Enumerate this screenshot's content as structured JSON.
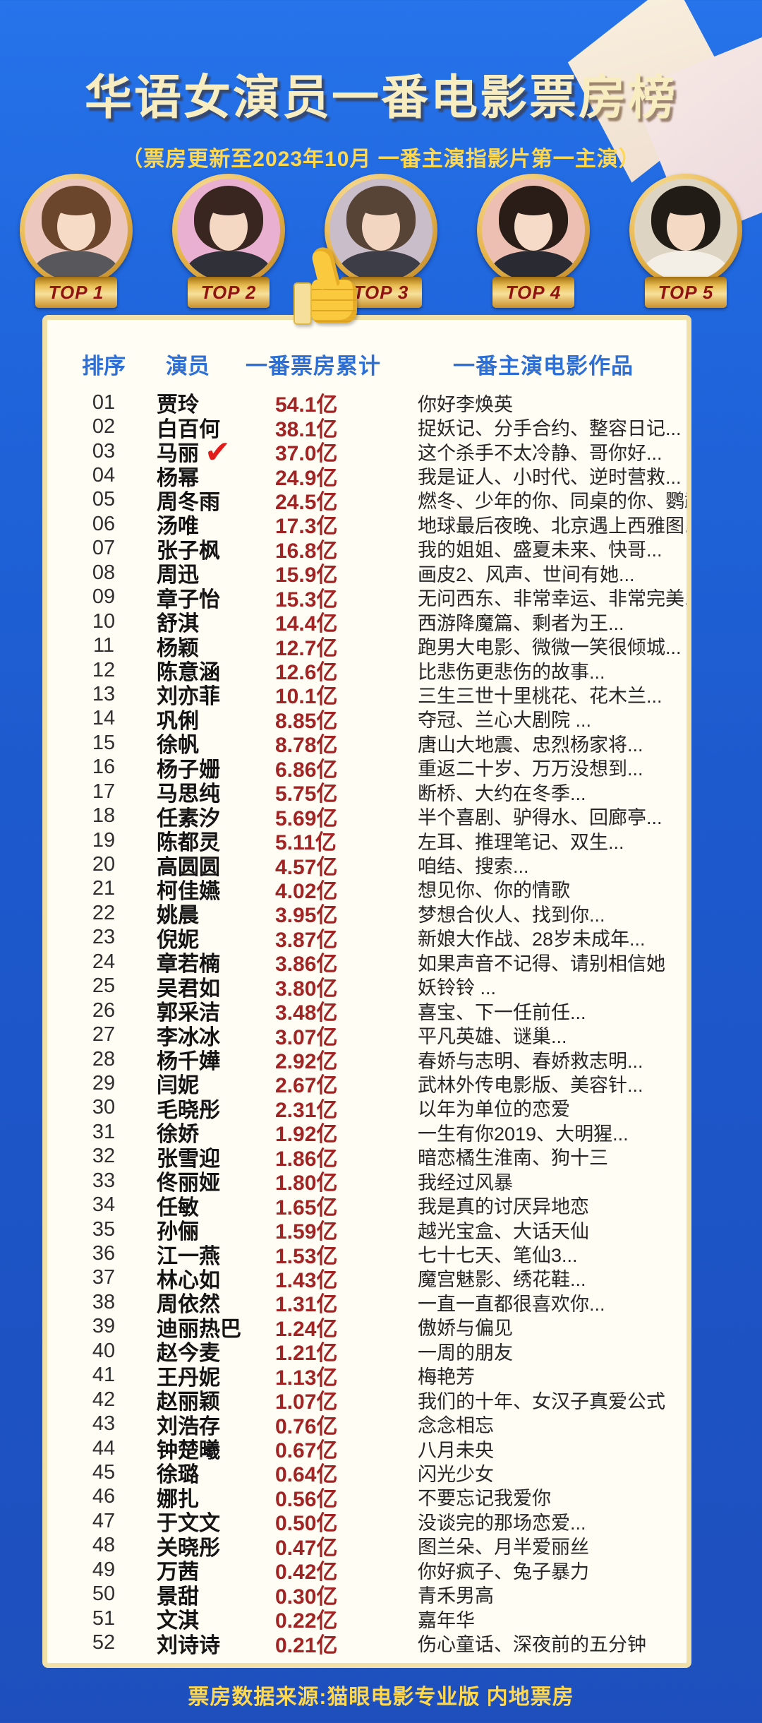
{
  "title": "华语女演员一番电影票房榜",
  "subtitle": "（票房更新至2023年10月  一番主演指影片第一主演）",
  "footer": "票房数据来源:猫眼电影专业版  内地票房",
  "colors": {
    "background_top": "#2673ea",
    "background_bottom": "#1e4fbd",
    "title_text": "#f8edc0",
    "accent_gold": "#ffd84d",
    "header_blue": "#2e6fd6",
    "gross_red": "#a12424",
    "check_red": "#e21b1b",
    "badge_text_red": "#8f1410"
  },
  "avatars": [
    {
      "badge": "TOP 1",
      "colors": {
        "bg": "#ecc7bd",
        "hair": "#6b452c",
        "skin": "#f6dcc6",
        "shirt": "#58585c"
      }
    },
    {
      "badge": "TOP 2",
      "colors": {
        "bg": "#eab0d2",
        "hair": "#3a2620",
        "skin": "#f4d8c3",
        "shirt": "#303038"
      }
    },
    {
      "badge": "TOP 3",
      "colors": {
        "bg": "#c9bdc9",
        "hair": "#584436",
        "skin": "#f2d6c1",
        "shirt": "#3d3d47"
      }
    },
    {
      "badge": "TOP 4",
      "colors": {
        "bg": "#edbfb2",
        "hair": "#2a1d17",
        "skin": "#f6dcc8",
        "shirt": "#2a2a32"
      }
    },
    {
      "badge": "TOP 5",
      "colors": {
        "bg": "#ddd4c4",
        "hair": "#221c16",
        "skin": "#f4dac5",
        "shirt": "#f3efe7"
      }
    }
  ],
  "decorations": {
    "thumbs_up_icon": "thumbs-up",
    "gift_box": "light paper box top-right"
  },
  "table": {
    "headers": [
      "排序",
      "演员",
      "一番票房累计",
      "一番主演电影作品"
    ],
    "rows": [
      {
        "rank": "01",
        "name": "贾玲",
        "gross": "54.1亿",
        "movies": "你好李焕英",
        "checked": false
      },
      {
        "rank": "02",
        "name": "白百何",
        "gross": "38.1亿",
        "movies": "捉妖记、分手合约、整容日记...",
        "checked": false
      },
      {
        "rank": "03",
        "name": "马丽",
        "gross": "37.0亿",
        "movies": "这个杀手不太冷静、哥你好...",
        "checked": true
      },
      {
        "rank": "04",
        "name": "杨幂",
        "gross": "24.9亿",
        "movies": "我是证人、小时代、逆时营救...",
        "checked": false
      },
      {
        "rank": "05",
        "name": "周冬雨",
        "gross": "24.5亿",
        "movies": "燃冬、少年的你、同桌的你、鹦鹉杀...",
        "checked": false
      },
      {
        "rank": "06",
        "name": "汤唯",
        "gross": "17.3亿",
        "movies": "地球最后夜晚、北京遇上西雅图...",
        "checked": false
      },
      {
        "rank": "07",
        "name": "张子枫",
        "gross": "16.8亿",
        "movies": "我的姐姐、盛夏未来、快哥...",
        "checked": false
      },
      {
        "rank": "08",
        "name": "周迅",
        "gross": "15.9亿",
        "movies": "画皮2、风声、世间有她...",
        "checked": false
      },
      {
        "rank": "09",
        "name": "章子怡",
        "gross": "15.3亿",
        "movies": "无问西东、非常幸运、非常完美...",
        "checked": false
      },
      {
        "rank": "10",
        "name": "舒淇",
        "gross": "14.4亿",
        "movies": "西游降魔篇、剩者为王...",
        "checked": false
      },
      {
        "rank": "11",
        "name": "杨颖",
        "gross": "12.7亿",
        "movies": "跑男大电影、微微一笑很倾城...",
        "checked": false
      },
      {
        "rank": "12",
        "name": "陈意涵",
        "gross": "12.6亿",
        "movies": "比悲伤更悲伤的故事...",
        "checked": false
      },
      {
        "rank": "13",
        "name": "刘亦菲",
        "gross": "10.1亿",
        "movies": "三生三世十里桃花、花木兰...",
        "checked": false
      },
      {
        "rank": "14",
        "name": "巩俐",
        "gross": "8.85亿",
        "movies": "夺冠、兰心大剧院 ...",
        "checked": false
      },
      {
        "rank": "15",
        "name": "徐帆",
        "gross": "8.78亿",
        "movies": "唐山大地震、忠烈杨家将...",
        "checked": false
      },
      {
        "rank": "16",
        "name": "杨子姗",
        "gross": "6.86亿",
        "movies": "重返二十岁、万万没想到...",
        "checked": false
      },
      {
        "rank": "17",
        "name": "马思纯",
        "gross": "5.75亿",
        "movies": "断桥、大约在冬季...",
        "checked": false
      },
      {
        "rank": "18",
        "name": "任素汐",
        "gross": "5.69亿",
        "movies": "半个喜剧、驴得水、回廊亭...",
        "checked": false
      },
      {
        "rank": "19",
        "name": "陈都灵",
        "gross": "5.11亿",
        "movies": "左耳、推理笔记、双生...",
        "checked": false
      },
      {
        "rank": "20",
        "name": "高圆圆",
        "gross": "4.57亿",
        "movies": "咱结、搜索...",
        "checked": false
      },
      {
        "rank": "21",
        "name": "柯佳嬿",
        "gross": "4.02亿",
        "movies": "想见你、你的情歌",
        "checked": false
      },
      {
        "rank": "22",
        "name": "姚晨",
        "gross": "3.95亿",
        "movies": "梦想合伙人、找到你...",
        "checked": false
      },
      {
        "rank": "23",
        "name": "倪妮",
        "gross": "3.87亿",
        "movies": "新娘大作战、28岁未成年...",
        "checked": false
      },
      {
        "rank": "24",
        "name": "章若楠",
        "gross": "3.86亿",
        "movies": "如果声音不记得、请别相信她",
        "checked": false
      },
      {
        "rank": "25",
        "name": "吴君如",
        "gross": "3.80亿",
        "movies": "妖铃铃 ...",
        "checked": false
      },
      {
        "rank": "26",
        "name": "郭采洁",
        "gross": "3.48亿",
        "movies": "喜宝、下一任前任...",
        "checked": false
      },
      {
        "rank": "27",
        "name": "李冰冰",
        "gross": "3.07亿",
        "movies": "平凡英雄、谜巢...",
        "checked": false
      },
      {
        "rank": "28",
        "name": "杨千嬅",
        "gross": "2.92亿",
        "movies": "春娇与志明、春娇救志明...",
        "checked": false
      },
      {
        "rank": "29",
        "name": "闫妮",
        "gross": "2.67亿",
        "movies": "武林外传电影版、美容针...",
        "checked": false
      },
      {
        "rank": "30",
        "name": "毛晓彤",
        "gross": "2.31亿",
        "movies": "以年为单位的恋爱",
        "checked": false
      },
      {
        "rank": "31",
        "name": "徐娇",
        "gross": "1.92亿",
        "movies": "一生有你2019、大明猩...",
        "checked": false
      },
      {
        "rank": "32",
        "name": "张雪迎",
        "gross": "1.86亿",
        "movies": "暗恋橘生淮南、狗十三",
        "checked": false
      },
      {
        "rank": "33",
        "name": "佟丽娅",
        "gross": "1.80亿",
        "movies": "我经过风暴",
        "checked": false
      },
      {
        "rank": "34",
        "name": "任敏",
        "gross": "1.65亿",
        "movies": "我是真的讨厌异地恋",
        "checked": false
      },
      {
        "rank": "35",
        "name": "孙俪",
        "gross": "1.59亿",
        "movies": "越光宝盒、大话天仙",
        "checked": false
      },
      {
        "rank": "36",
        "name": "江一燕",
        "gross": "1.53亿",
        "movies": "七十七天、笔仙3...",
        "checked": false
      },
      {
        "rank": "37",
        "name": "林心如",
        "gross": "1.43亿",
        "movies": "魔宫魅影、绣花鞋...",
        "checked": false
      },
      {
        "rank": "38",
        "name": "周依然",
        "gross": "1.31亿",
        "movies": "一直一直都很喜欢你...",
        "checked": false
      },
      {
        "rank": "39",
        "name": "迪丽热巴",
        "gross": "1.24亿",
        "movies": "傲娇与偏见",
        "checked": false
      },
      {
        "rank": "40",
        "name": "赵今麦",
        "gross": "1.21亿",
        "movies": "一周的朋友",
        "checked": false
      },
      {
        "rank": "41",
        "name": "王丹妮",
        "gross": "1.13亿",
        "movies": "梅艳芳",
        "checked": false
      },
      {
        "rank": "42",
        "name": "赵丽颖",
        "gross": "1.07亿",
        "movies": "我们的十年、女汉子真爱公式",
        "checked": false
      },
      {
        "rank": "43",
        "name": "刘浩存",
        "gross": "0.76亿",
        "movies": "念念相忘",
        "checked": false
      },
      {
        "rank": "44",
        "name": "钟楚曦",
        "gross": "0.67亿",
        "movies": "八月未央",
        "checked": false
      },
      {
        "rank": "45",
        "name": "徐璐",
        "gross": "0.64亿",
        "movies": "闪光少女",
        "checked": false
      },
      {
        "rank": "46",
        "name": "娜扎",
        "gross": "0.56亿",
        "movies": "不要忘记我爱你",
        "checked": false
      },
      {
        "rank": "47",
        "name": "于文文",
        "gross": "0.50亿",
        "movies": "没谈完的那场恋爱...",
        "checked": false
      },
      {
        "rank": "48",
        "name": "关晓彤",
        "gross": "0.47亿",
        "movies": "图兰朵、月半爱丽丝",
        "checked": false
      },
      {
        "rank": "49",
        "name": "万茜",
        "gross": "0.42亿",
        "movies": "你好疯子、兔子暴力",
        "checked": false
      },
      {
        "rank": "50",
        "name": "景甜",
        "gross": "0.30亿",
        "movies": "青禾男高",
        "checked": false
      },
      {
        "rank": "51",
        "name": "文淇",
        "gross": "0.22亿",
        "movies": "嘉年华",
        "checked": false
      },
      {
        "rank": "52",
        "name": "刘诗诗",
        "gross": "0.21亿",
        "movies": "伤心童话、深夜前的五分钟",
        "checked": false
      }
    ]
  }
}
